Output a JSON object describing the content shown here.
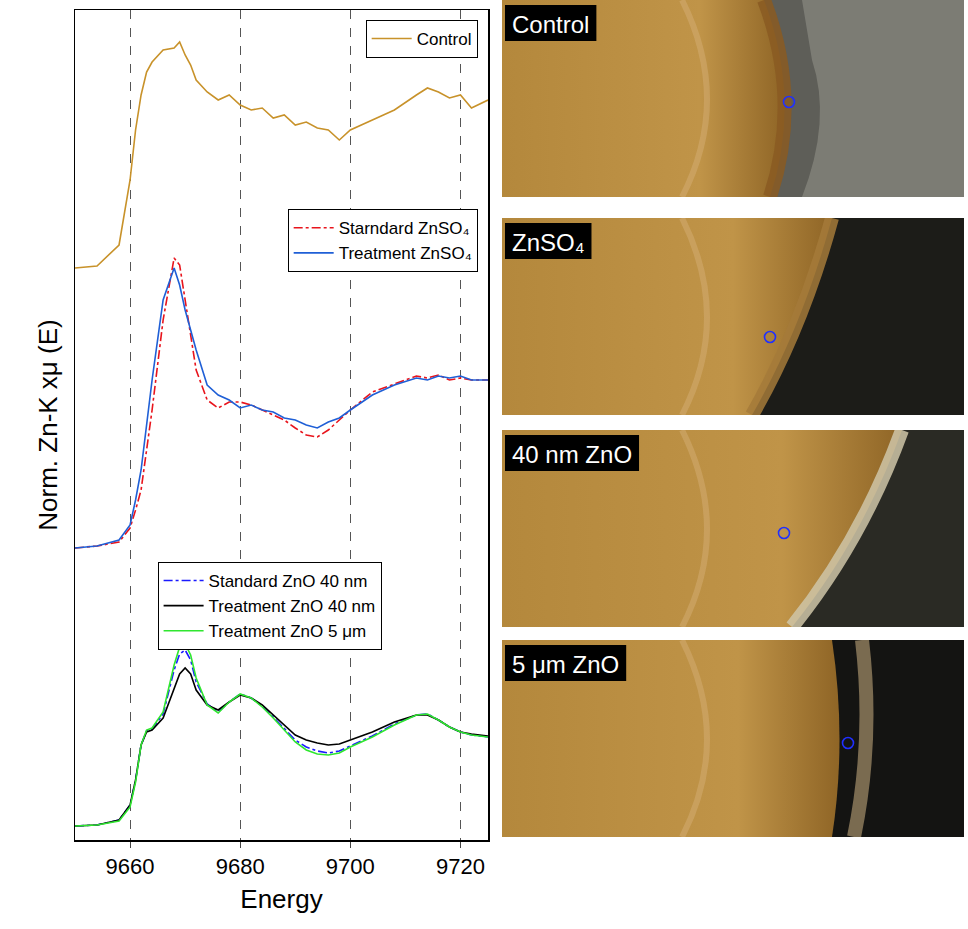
{
  "chart_data": {
    "type": "line",
    "x_label": "Energy",
    "y_label": "Norm. Zn-K xμ (E)",
    "x": [
      9650,
      9654,
      9658,
      9660,
      9661,
      9662,
      9663,
      9664,
      9666,
      9668,
      9669,
      9670,
      9671,
      9672,
      9674,
      9676,
      9678,
      9680,
      9682,
      9684,
      9686,
      9688,
      9690,
      9692,
      9694,
      9696,
      9698,
      9700,
      9704,
      9708,
      9712,
      9714,
      9716,
      9718,
      9720,
      9722,
      9725
    ],
    "xlim": [
      9650,
      9725
    ],
    "xticks": [
      9660,
      9680,
      9700,
      9720
    ],
    "ylim": [
      0,
      8.3
    ],
    "yticks": [],
    "tick_labels": "x",
    "grid": true,
    "legend": "top right",
    "series": [
      {
        "name": "Control",
        "color": "#c8922a",
        "line_style": "solid",
        "values": [
          5.72,
          5.74,
          5.95,
          6.6,
          7.1,
          7.45,
          7.68,
          7.78,
          7.9,
          7.92,
          7.98,
          7.85,
          7.75,
          7.6,
          7.48,
          7.4,
          7.45,
          7.35,
          7.3,
          7.32,
          7.22,
          7.25,
          7.15,
          7.18,
          7.12,
          7.1,
          7.0,
          7.1,
          7.2,
          7.3,
          7.45,
          7.52,
          7.48,
          7.42,
          7.45,
          7.32,
          7.4
        ]
      },
      {
        "name": "Starndard ZnSO₄",
        "color": "#e8141c",
        "line_style": "dashdot",
        "values": [
          2.92,
          2.94,
          2.98,
          3.12,
          3.3,
          3.5,
          3.9,
          4.3,
          5.2,
          5.82,
          5.75,
          5.4,
          5.05,
          4.7,
          4.4,
          4.32,
          4.38,
          4.38,
          4.35,
          4.3,
          4.25,
          4.2,
          4.12,
          4.05,
          4.03,
          4.1,
          4.2,
          4.3,
          4.48,
          4.56,
          4.64,
          4.62,
          4.65,
          4.6,
          4.62,
          4.6,
          4.6
        ]
      },
      {
        "name": "Treatment ZnSO₄",
        "color": "#1f5fd6",
        "line_style": "solid",
        "values": [
          2.92,
          2.94,
          3.0,
          3.15,
          3.4,
          3.7,
          4.15,
          4.6,
          5.4,
          5.72,
          5.55,
          5.3,
          5.1,
          4.9,
          4.55,
          4.45,
          4.4,
          4.32,
          4.35,
          4.3,
          4.28,
          4.22,
          4.2,
          4.15,
          4.12,
          4.18,
          4.22,
          4.3,
          4.45,
          4.55,
          4.62,
          4.6,
          4.64,
          4.62,
          4.64,
          4.6,
          4.6
        ]
      },
      {
        "name": "Standard ZnO 40 nm",
        "color": "#1a1aff",
        "line_style": "dashdot",
        "values": [
          0.14,
          0.15,
          0.2,
          0.35,
          0.6,
          0.95,
          1.09,
          1.11,
          1.26,
          1.7,
          1.86,
          1.9,
          1.8,
          1.58,
          1.36,
          1.28,
          1.38,
          1.46,
          1.42,
          1.34,
          1.23,
          1.12,
          1.0,
          0.93,
          0.89,
          0.87,
          0.89,
          0.94,
          1.04,
          1.16,
          1.25,
          1.26,
          1.2,
          1.13,
          1.08,
          1.05,
          1.03
        ]
      },
      {
        "name": "Treatment ZnO 40 nm",
        "color": "#000000",
        "line_style": "solid",
        "values": [
          0.14,
          0.15,
          0.2,
          0.35,
          0.6,
          0.95,
          1.08,
          1.1,
          1.22,
          1.52,
          1.66,
          1.72,
          1.66,
          1.5,
          1.35,
          1.3,
          1.38,
          1.45,
          1.42,
          1.35,
          1.25,
          1.15,
          1.05,
          1.0,
          0.97,
          0.95,
          0.96,
          1.0,
          1.08,
          1.18,
          1.25,
          1.25,
          1.2,
          1.13,
          1.08,
          1.06,
          1.04
        ]
      },
      {
        "name": "Treatment ZnO 5 μm",
        "color": "#2fe62f",
        "line_style": "solid",
        "values": [
          0.14,
          0.15,
          0.19,
          0.33,
          0.58,
          0.95,
          1.1,
          1.12,
          1.28,
          1.75,
          1.93,
          1.96,
          1.85,
          1.62,
          1.35,
          1.27,
          1.38,
          1.46,
          1.42,
          1.33,
          1.22,
          1.1,
          0.98,
          0.9,
          0.86,
          0.85,
          0.87,
          0.93,
          1.03,
          1.15,
          1.25,
          1.26,
          1.2,
          1.13,
          1.08,
          1.05,
          1.03
        ]
      }
    ]
  },
  "panels": [
    {
      "label": "Control"
    },
    {
      "label": "ZnSO₄"
    },
    {
      "label": "40 nm ZnO"
    },
    {
      "label": "5 μm ZnO"
    }
  ]
}
